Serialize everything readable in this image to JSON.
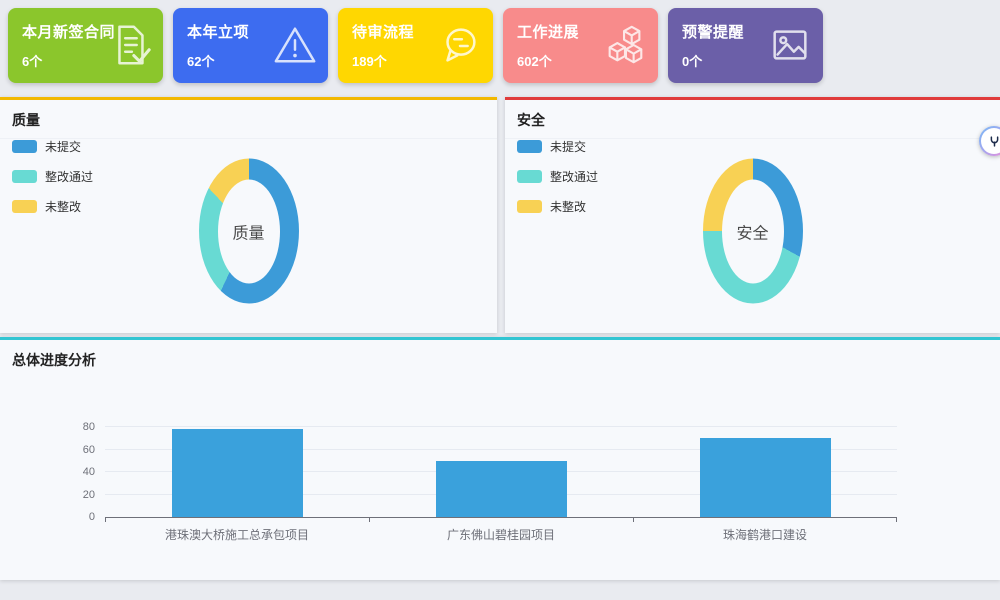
{
  "cards": [
    {
      "title": "本月新签合同",
      "count": "6个",
      "color": "#8bc62c",
      "icon": "document-check-icon"
    },
    {
      "title": "本年立项",
      "count": "62个",
      "color": "#3d6cf0",
      "icon": "warning-triangle-icon"
    },
    {
      "title": "待审流程",
      "count": "189个",
      "color": "#ffd701",
      "icon": "chat-bubble-icon"
    },
    {
      "title": "工作进展",
      "count": "602个",
      "color": "#f88b8b",
      "icon": "cubes-icon"
    },
    {
      "title": "预警提醒",
      "count": "0个",
      "color": "#6b5fa8",
      "icon": "picture-icon"
    }
  ],
  "panels": {
    "quality": {
      "title": "质量",
      "accent": "#f2b800"
    },
    "safety": {
      "title": "安全",
      "accent": "#e03b3b"
    },
    "progress": {
      "title": "总体进度分析",
      "accent": "#32c5d2"
    }
  },
  "legend": {
    "items": [
      {
        "label": "未提交",
        "color": "#3C9BD8"
      },
      {
        "label": "整改通过",
        "color": "#68DAD3"
      },
      {
        "label": "未整改",
        "color": "#F8D154"
      }
    ]
  },
  "chart_data": [
    {
      "type": "pie",
      "donut": true,
      "title": "质量",
      "center_label": "质量",
      "labels": [
        "未提交",
        "整改通过",
        "未整改"
      ],
      "values": [
        57,
        31,
        12
      ],
      "unit": "%",
      "colors": [
        "#3C9BD8",
        "#68DAD3",
        "#F8D154"
      ],
      "legend_position": "top-left"
    },
    {
      "type": "pie",
      "donut": true,
      "title": "安全",
      "center_label": "安全",
      "labels": [
        "未提交",
        "整改通过",
        "未整改"
      ],
      "values": [
        33,
        42,
        25
      ],
      "unit": "%",
      "colors": [
        "#3C9BD8",
        "#68DAD3",
        "#F8D154"
      ],
      "legend_position": "top-left"
    },
    {
      "type": "bar",
      "title": "总体进度分析",
      "categories": [
        "港珠澳大桥施工总承包项目",
        "广东佛山碧桂园项目",
        "珠海鹤港口建设"
      ],
      "values": [
        78,
        50,
        70
      ],
      "bar_color": "#3AA1DC",
      "xlabel": "",
      "ylabel": "",
      "ylim": [
        0,
        80
      ],
      "yticks": [
        0,
        20,
        40,
        60,
        80
      ],
      "grid": true,
      "legend_position": "none"
    }
  ],
  "floating_button": {
    "icon": "assistant-icon"
  }
}
